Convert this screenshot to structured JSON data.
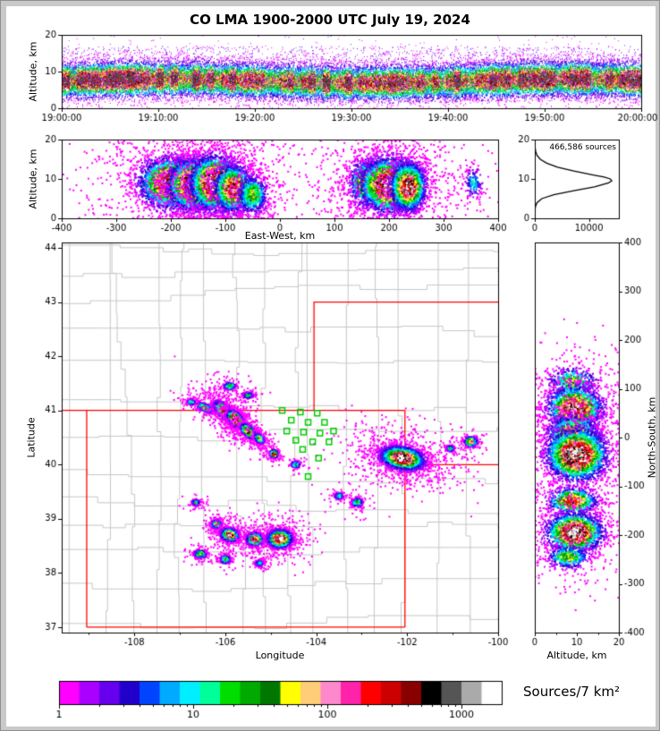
{
  "title": "CO LMA 1900-2000 UTC July 19, 2024",
  "labels": {
    "altitude_km": "Altitude, km",
    "east_west": "East-West, km",
    "latitude": "Latitude",
    "longitude": "Longitude",
    "north_south": "North-South, km"
  },
  "colors": {
    "paper": "#ffffff",
    "frame": "#c9c9c9",
    "axis": "#000000",
    "county_line": "#c6c6c6",
    "state_line": "#ff0000",
    "station": "#00cc00",
    "histogram_line": "#000000"
  },
  "chart_data": {
    "type": "scatter",
    "subtype": "lma-source-density-multipanel",
    "title": "CO LMA 1900-2000 UTC July 19, 2024",
    "panels": {
      "time_height": {
        "x_range_seconds": [
          0,
          3600
        ],
        "x_ticks": [
          {
            "v": 0,
            "label": "19:00:00"
          },
          {
            "v": 600,
            "label": "19:10:00"
          },
          {
            "v": 1200,
            "label": "19:20:00"
          },
          {
            "v": 1800,
            "label": "19:30:00"
          },
          {
            "v": 2400,
            "label": "19:40:00"
          },
          {
            "v": 3000,
            "label": "19:50:00"
          },
          {
            "v": 3600,
            "label": "20:00:00"
          }
        ],
        "y_label": "Altitude, km",
        "y_range": [
          0,
          20
        ],
        "y_ticks": [
          0,
          10,
          20
        ],
        "band": {
          "center_km": 7.6,
          "spread_km": 2.4,
          "n": 34000,
          "max_intensity": 0.88
        },
        "sparse": {
          "n": 3200,
          "alt_min": 2,
          "alt_max": 17
        },
        "outliers": {
          "n": 450,
          "alt_min": 0,
          "alt_max": 20
        }
      },
      "east_west_height": {
        "x_label": "East-West, km",
        "x_range": [
          -400,
          400
        ],
        "x_ticks": [
          -400,
          -300,
          -200,
          -100,
          0,
          100,
          200,
          300,
          400
        ],
        "y_label": "Altitude, km",
        "y_range": [
          0,
          20
        ],
        "y_ticks": [
          0,
          10,
          20
        ],
        "clusters": [
          {
            "cx": -200,
            "cy": 9.0,
            "sx": 28,
            "sy": 3.2,
            "peak": 0.9,
            "n": 3300
          },
          {
            "cx": -160,
            "cy": 8.5,
            "sx": 22,
            "sy": 3.2,
            "peak": 0.95,
            "n": 3000
          },
          {
            "cx": -120,
            "cy": 9.0,
            "sx": 22,
            "sy": 3.4,
            "peak": 1.0,
            "n": 3600
          },
          {
            "cx": -85,
            "cy": 7.5,
            "sx": 18,
            "sy": 3.0,
            "peak": 0.8,
            "n": 1800
          },
          {
            "cx": -50,
            "cy": 6.0,
            "sx": 14,
            "sy": 2.5,
            "peak": 0.5,
            "n": 750
          },
          {
            "cx": 155,
            "cy": 9.0,
            "sx": 14,
            "sy": 3.0,
            "peak": 0.6,
            "n": 900
          },
          {
            "cx": 200,
            "cy": 8.5,
            "sx": 26,
            "sy": 3.4,
            "peak": 0.95,
            "n": 3600
          },
          {
            "cx": 235,
            "cy": 8.0,
            "sx": 16,
            "sy": 3.0,
            "peak": 0.9,
            "n": 2100
          },
          {
            "cx": 355,
            "cy": 9.0,
            "sx": 8,
            "sy": 2.0,
            "peak": 0.3,
            "n": 180
          }
        ]
      },
      "altitude_histogram": {
        "annotation": "466,586 sources",
        "x_range": [
          0,
          15500
        ],
        "x_ticks": [
          {
            "v": 0,
            "label": "0"
          },
          {
            "v": 10000,
            "label": "10000"
          }
        ],
        "y_range": [
          0,
          20
        ],
        "y_ticks": [
          0,
          10,
          20
        ],
        "profile_alt_km": [
          0,
          2,
          3,
          4,
          5,
          6,
          7,
          8,
          9,
          9.5,
          10,
          10.5,
          11,
          12,
          13,
          14,
          15,
          16,
          17,
          18,
          19,
          20
        ],
        "profile_count": [
          0,
          30,
          120,
          420,
          1300,
          3500,
          7200,
          11000,
          13600,
          14200,
          13900,
          12800,
          10800,
          7200,
          4200,
          2200,
          1000,
          420,
          160,
          50,
          10,
          0
        ]
      },
      "plan_view_map": {
        "x_label": "Longitude",
        "x_range": [
          -109.6,
          -100
        ],
        "x_ticks": [
          -108,
          -106,
          -104,
          -102,
          -100
        ],
        "x_minor_ticks": [
          -109,
          -107,
          -105,
          -103,
          -101
        ],
        "y_label": "Latitude",
        "y_range": [
          36.9,
          44.1
        ],
        "y_ticks": [
          37,
          38,
          39,
          40,
          41,
          42,
          43,
          44
        ],
        "state_borders": [
          [
            [
              -109.6,
              41
            ],
            [
              -102.05,
              41
            ]
          ],
          [
            [
              -109.05,
              41
            ],
            [
              -109.05,
              37
            ]
          ],
          [
            [
              -109.05,
              37
            ],
            [
              -102.05,
              37
            ]
          ],
          [
            [
              -102.05,
              37
            ],
            [
              -102.05,
              41
            ]
          ],
          [
            [
              -104.05,
              41
            ],
            [
              -104.05,
              43
            ],
            [
              -100,
              43
            ]
          ],
          [
            [
              -102.05,
              40
            ],
            [
              -100,
              40
            ]
          ]
        ],
        "stations": [
          [
            -104.75,
            41.0
          ],
          [
            -104.35,
            40.97
          ],
          [
            -103.98,
            40.95
          ],
          [
            -104.55,
            40.82
          ],
          [
            -104.18,
            40.78
          ],
          [
            -103.82,
            40.78
          ],
          [
            -104.65,
            40.62
          ],
          [
            -104.28,
            40.6
          ],
          [
            -103.92,
            40.58
          ],
          [
            -103.62,
            40.62
          ],
          [
            -104.45,
            40.45
          ],
          [
            -104.08,
            40.42
          ],
          [
            -103.72,
            40.42
          ],
          [
            -104.3,
            40.28
          ],
          [
            -103.95,
            40.12
          ],
          [
            -104.18,
            39.78
          ]
        ],
        "clusters": [
          {
            "cx": -106.45,
            "cy": 41.05,
            "sx": 0.1,
            "sy": 0.04,
            "peak": 0.5,
            "n": 400,
            "angle": -20
          },
          {
            "cx": -106.0,
            "cy": 40.97,
            "sx": 0.14,
            "sy": 0.06,
            "peak": 0.9,
            "n": 1600,
            "angle": -35
          },
          {
            "cx": -105.78,
            "cy": 40.84,
            "sx": 0.1,
            "sy": 0.06,
            "peak": 1.0,
            "n": 1800,
            "angle": -35
          },
          {
            "cx": -105.5,
            "cy": 40.62,
            "sx": 0.09,
            "sy": 0.05,
            "peak": 0.85,
            "n": 1100,
            "angle": -35
          },
          {
            "cx": -105.25,
            "cy": 40.48,
            "sx": 0.06,
            "sy": 0.04,
            "peak": 0.6,
            "n": 450,
            "angle": -35
          },
          {
            "cx": -105.9,
            "cy": 41.45,
            "sx": 0.07,
            "sy": 0.035,
            "peak": 0.45,
            "n": 260,
            "angle": 0
          },
          {
            "cx": -105.5,
            "cy": 41.28,
            "sx": 0.06,
            "sy": 0.03,
            "peak": 0.4,
            "n": 200,
            "angle": 0
          },
          {
            "cx": -106.75,
            "cy": 41.15,
            "sx": 0.05,
            "sy": 0.03,
            "peak": 0.35,
            "n": 150,
            "angle": 0
          },
          {
            "cx": -104.93,
            "cy": 40.2,
            "sx": 0.045,
            "sy": 0.035,
            "peak": 0.9,
            "n": 420,
            "angle": 0
          },
          {
            "cx": -104.45,
            "cy": 40.0,
            "sx": 0.05,
            "sy": 0.03,
            "peak": 0.45,
            "n": 200,
            "angle": 0
          },
          {
            "cx": -102.1,
            "cy": 40.12,
            "sx": 0.23,
            "sy": 0.1,
            "peak": 1.0,
            "n": 4200,
            "angle": -8
          },
          {
            "cx": -101.05,
            "cy": 40.3,
            "sx": 0.045,
            "sy": 0.03,
            "peak": 0.4,
            "n": 150,
            "angle": 0
          },
          {
            "cx": -100.6,
            "cy": 40.42,
            "sx": 0.07,
            "sy": 0.045,
            "peak": 0.75,
            "n": 420,
            "angle": 0
          },
          {
            "cx": -103.1,
            "cy": 39.3,
            "sx": 0.06,
            "sy": 0.04,
            "peak": 0.5,
            "n": 280,
            "angle": 0
          },
          {
            "cx": -103.5,
            "cy": 39.42,
            "sx": 0.05,
            "sy": 0.03,
            "peak": 0.4,
            "n": 200,
            "angle": 0
          },
          {
            "cx": -106.65,
            "cy": 39.3,
            "sx": 0.05,
            "sy": 0.03,
            "peak": 0.35,
            "n": 170,
            "angle": 0
          },
          {
            "cx": -106.2,
            "cy": 38.9,
            "sx": 0.06,
            "sy": 0.04,
            "peak": 0.5,
            "n": 300,
            "angle": 0
          },
          {
            "cx": -105.9,
            "cy": 38.7,
            "sx": 0.1,
            "sy": 0.06,
            "peak": 0.85,
            "n": 1100,
            "angle": -10
          },
          {
            "cx": -105.35,
            "cy": 38.62,
            "sx": 0.09,
            "sy": 0.06,
            "peak": 0.8,
            "n": 950,
            "angle": 0
          },
          {
            "cx": -104.8,
            "cy": 38.63,
            "sx": 0.13,
            "sy": 0.08,
            "peak": 0.95,
            "n": 2000,
            "angle": 0
          },
          {
            "cx": -106.55,
            "cy": 38.35,
            "sx": 0.07,
            "sy": 0.04,
            "peak": 0.5,
            "n": 320,
            "angle": 0
          },
          {
            "cx": -106.0,
            "cy": 38.25,
            "sx": 0.06,
            "sy": 0.04,
            "peak": 0.45,
            "n": 260,
            "angle": 0
          },
          {
            "cx": -105.25,
            "cy": 38.18,
            "sx": 0.05,
            "sy": 0.03,
            "peak": 0.35,
            "n": 170,
            "angle": 0
          }
        ]
      },
      "north_south_height": {
        "x_label": "Altitude, km",
        "x_range": [
          0,
          20
        ],
        "x_ticks": [
          0,
          10,
          20
        ],
        "x_minor_ticks": [
          5,
          15
        ],
        "y_label": "North-South, km",
        "y_range": [
          -400,
          400
        ],
        "y_ticks": [
          400,
          300,
          200,
          100,
          0,
          -100,
          -200,
          -300,
          -400
        ],
        "clusters": [
          {
            "cx": 9.0,
            "cy": 115,
            "sx": 3.0,
            "sy": 14,
            "peak": 0.5,
            "n": 500
          },
          {
            "cx": 9.5,
            "cy": 60,
            "sx": 3.2,
            "sy": 22,
            "peak": 0.9,
            "n": 2200
          },
          {
            "cx": 9.0,
            "cy": 5,
            "sx": 3.0,
            "sy": 20,
            "peak": 0.75,
            "n": 1200
          },
          {
            "cx": 10.0,
            "cy": -35,
            "sx": 3.5,
            "sy": 26,
            "peak": 1.0,
            "n": 3200
          },
          {
            "cx": 9.0,
            "cy": -130,
            "sx": 3.0,
            "sy": 14,
            "peak": 0.7,
            "n": 800
          },
          {
            "cx": 9.5,
            "cy": -195,
            "sx": 3.3,
            "sy": 20,
            "peak": 0.95,
            "n": 2200
          },
          {
            "cx": 8.0,
            "cy": -245,
            "sx": 2.5,
            "sy": 12,
            "peak": 0.5,
            "n": 450
          }
        ]
      }
    },
    "colorbar": {
      "label": "Sources/7 km²",
      "log_decades": 3.3,
      "tick_labels": [
        {
          "value": 1,
          "label": "1"
        },
        {
          "value": 10,
          "label": "10"
        },
        {
          "value": 100,
          "label": "100"
        },
        {
          "value": 1000,
          "label": "1000"
        }
      ],
      "segments": [
        "#ff00ff",
        "#aa00ff",
        "#6600ee",
        "#2200cc",
        "#0044ff",
        "#00aaff",
        "#00eeff",
        "#00ff99",
        "#00dd00",
        "#00aa00",
        "#007700",
        "#ffff00",
        "#ffcc77",
        "#ff88cc",
        "#ff22aa",
        "#ff0000",
        "#cc0000",
        "#880000",
        "#000000",
        "#555555",
        "#aaaaaa",
        "#ffffff"
      ]
    }
  }
}
